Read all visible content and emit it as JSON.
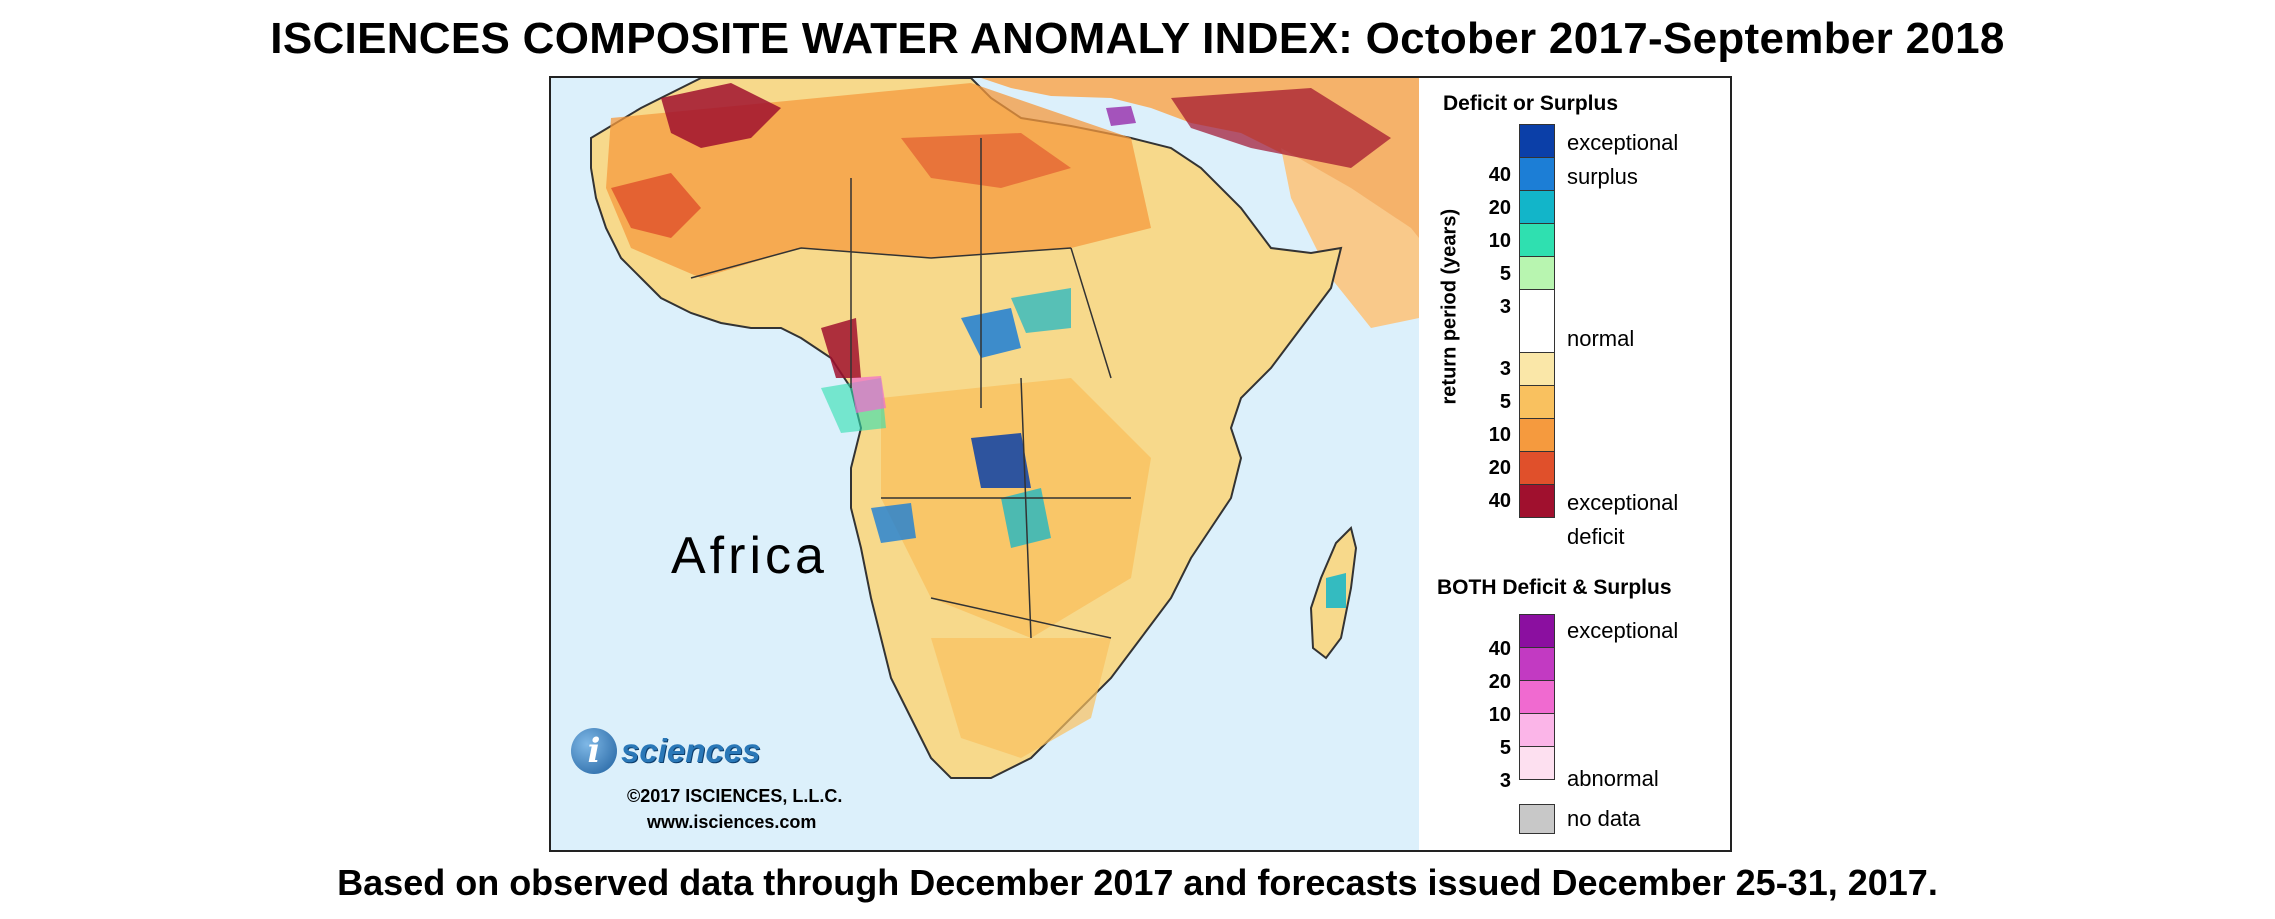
{
  "header": {
    "title": "ISCIENCES COMPOSITE WATER ANOMALY INDEX: October 2017-September 2018"
  },
  "map": {
    "region_label": "Africa",
    "ocean_color": "#dcf0fb",
    "land_base_color": "#f7d98b"
  },
  "branding": {
    "logo_letter": "i",
    "logo_word": "sciences",
    "copyright": "©2017 ISCIENCES, L.L.C.",
    "website": "www.isciences.com"
  },
  "legend": {
    "deficit_surplus_title": "Deficit or Surplus",
    "axis_label": "return period (years)",
    "surplus_colors": [
      "#0b3fa8",
      "#1c7ed6",
      "#12b5c9",
      "#2fe0b0",
      "#b8f5b0"
    ],
    "normal_color": "#ffffff",
    "deficit_colors": [
      "#fae7a8",
      "#f9c15f",
      "#f59a3e",
      "#e0502b",
      "#a0102e"
    ],
    "surplus_ticks": [
      "40",
      "20",
      "10",
      "5",
      "3"
    ],
    "deficit_ticks": [
      "3",
      "5",
      "10",
      "20",
      "40"
    ],
    "exceptional_label": "exceptional",
    "surplus_word": "surplus",
    "normal_label": "normal",
    "deficit_word": "deficit",
    "both_title": "BOTH Deficit & Surplus",
    "both_colors": [
      "#8b0fa0",
      "#c23ac2",
      "#f06ad0",
      "#fbb5e8",
      "#fde0f0"
    ],
    "both_ticks": [
      "40",
      "20",
      "10",
      "5",
      "3"
    ],
    "both_top_label": "exceptional",
    "both_bottom_label": "abnormal",
    "nodata_color": "#c8c8c8",
    "nodata_label": "no data"
  },
  "footer": {
    "note": "Based on observed data through December 2017 and forecasts issued December 25-31, 2017."
  }
}
